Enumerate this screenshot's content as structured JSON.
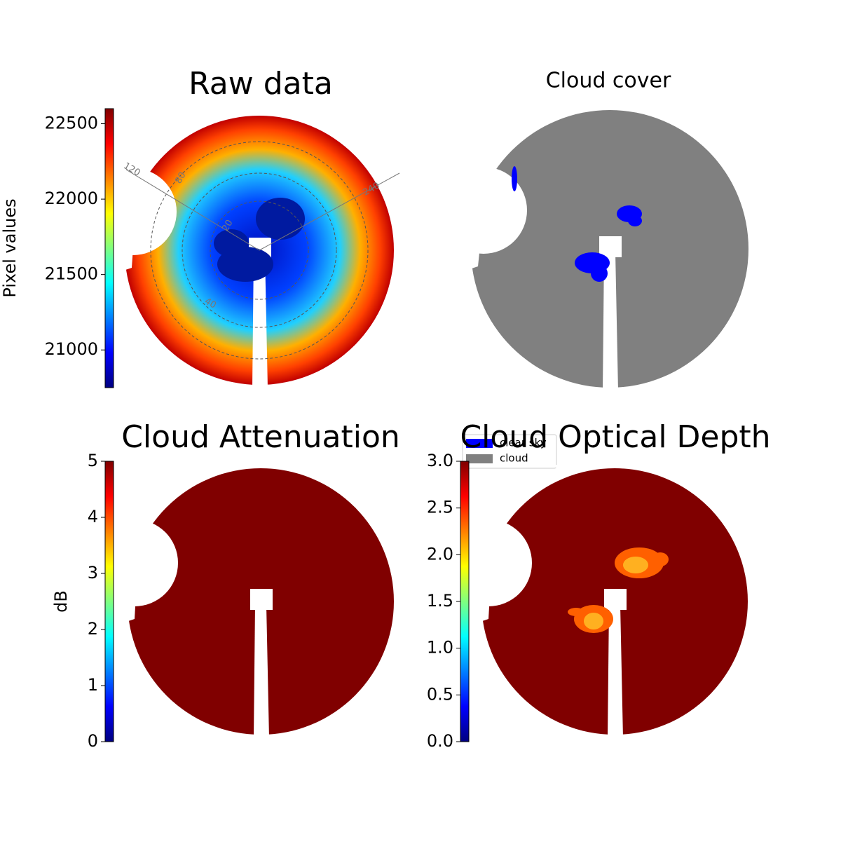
{
  "chart_data": [
    {
      "type": "heatmap",
      "title": "Raw data",
      "colorbar_label": "Pixel values",
      "colormap": "jet",
      "clim": [
        20750,
        22600
      ],
      "cticks": [
        21000,
        21500,
        22000,
        22500
      ],
      "annotations": [
        "120",
        "80",
        "240",
        "20",
        "40"
      ]
    },
    {
      "type": "classmap",
      "title": "Cloud cover",
      "series": [
        {
          "name": "clear sky",
          "color": "#0000ff"
        },
        {
          "name": "cloud",
          "color": "#808080"
        }
      ]
    },
    {
      "type": "heatmap",
      "title": "Cloud Attenuation",
      "colorbar_label": "dB",
      "colormap": "jet",
      "clim": [
        0,
        5
      ],
      "cticks": [
        0,
        1,
        2,
        3,
        4,
        5
      ]
    },
    {
      "type": "heatmap",
      "title": "Cloud Optical Depth",
      "colormap": "jet",
      "clim": [
        0,
        3
      ],
      "cticks": [
        {
          "value": 0,
          "label": "0.0"
        },
        0.5,
        {
          "value": 1,
          "label": "1.0"
        },
        1.5,
        {
          "value": 2,
          "label": "2.0"
        },
        2.5,
        {
          "value": 3,
          "label": "3.0"
        }
      ]
    }
  ]
}
